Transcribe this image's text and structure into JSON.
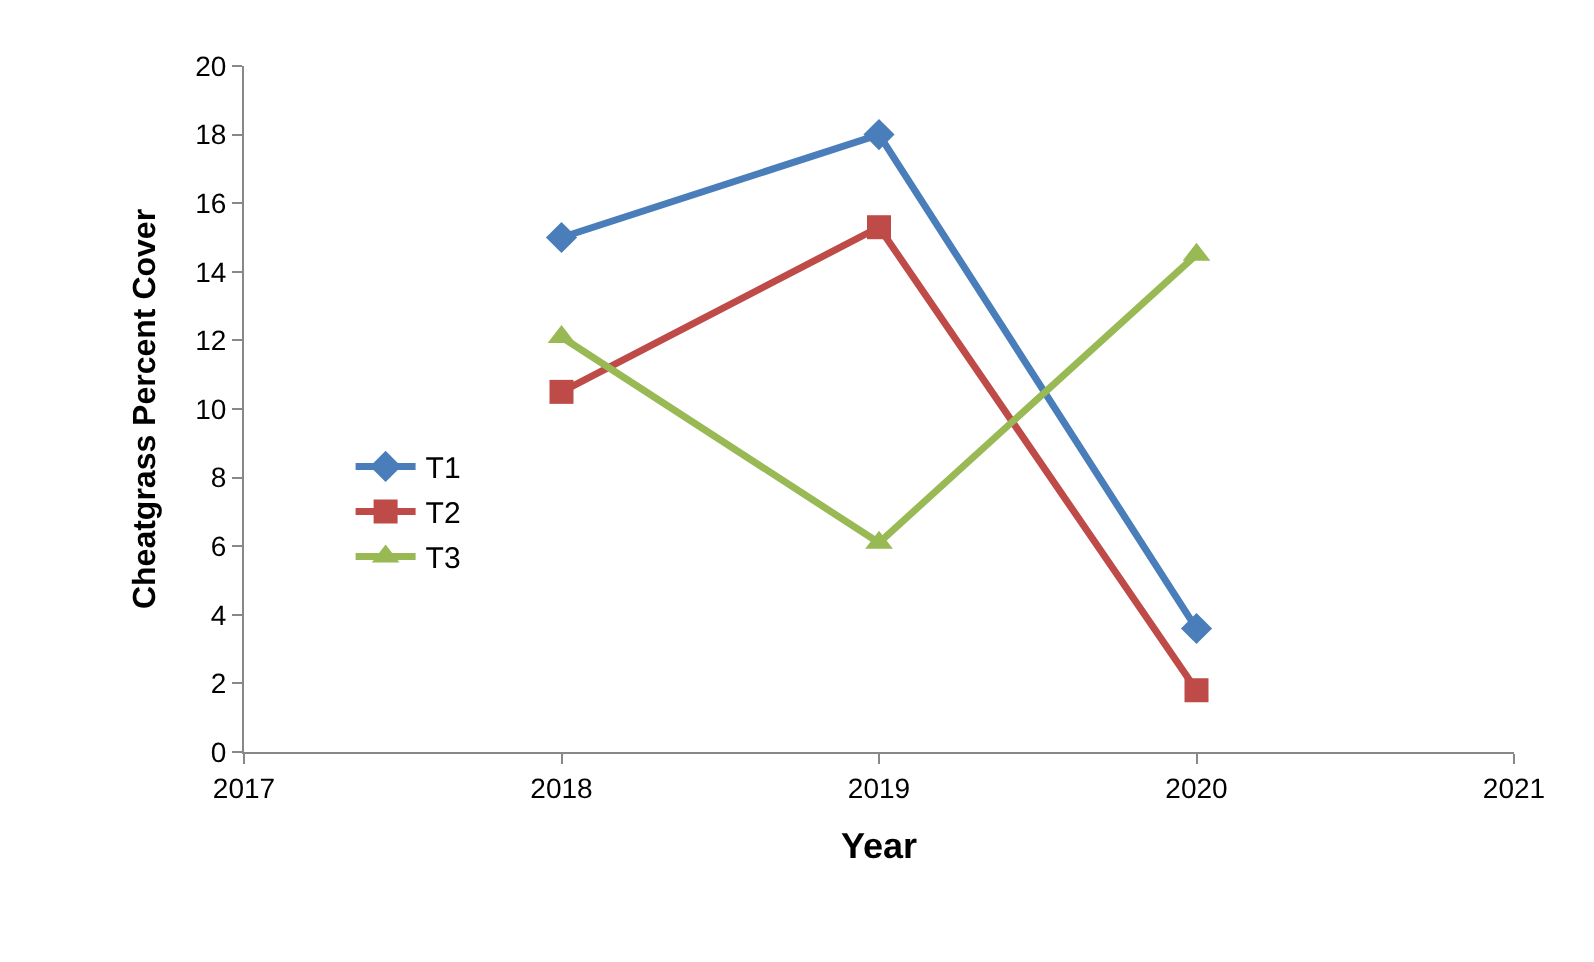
{
  "chart_data": {
    "type": "line",
    "xlabel": "Year",
    "ylabel": "Cheatgrass Percent Cover",
    "x": [
      2018,
      2019,
      2020
    ],
    "series": [
      {
        "name": "T1",
        "color": "#4a7ebb",
        "marker": "diamond",
        "values": [
          15.0,
          18.0,
          3.6
        ]
      },
      {
        "name": "T2",
        "color": "#be4b48",
        "marker": "square",
        "values": [
          10.5,
          15.3,
          1.8
        ]
      },
      {
        "name": "T3",
        "color": "#98b954",
        "marker": "triangle",
        "values": [
          12.1,
          6.1,
          14.5
        ]
      }
    ],
    "xlim": [
      2017,
      2021
    ],
    "xticks": [
      2017,
      2018,
      2019,
      2020,
      2021
    ],
    "ylim": [
      0,
      20
    ],
    "yticks": [
      0,
      2,
      4,
      6,
      8,
      10,
      12,
      14,
      16,
      18,
      20
    ],
    "legend": "left",
    "line_style": "solid"
  }
}
